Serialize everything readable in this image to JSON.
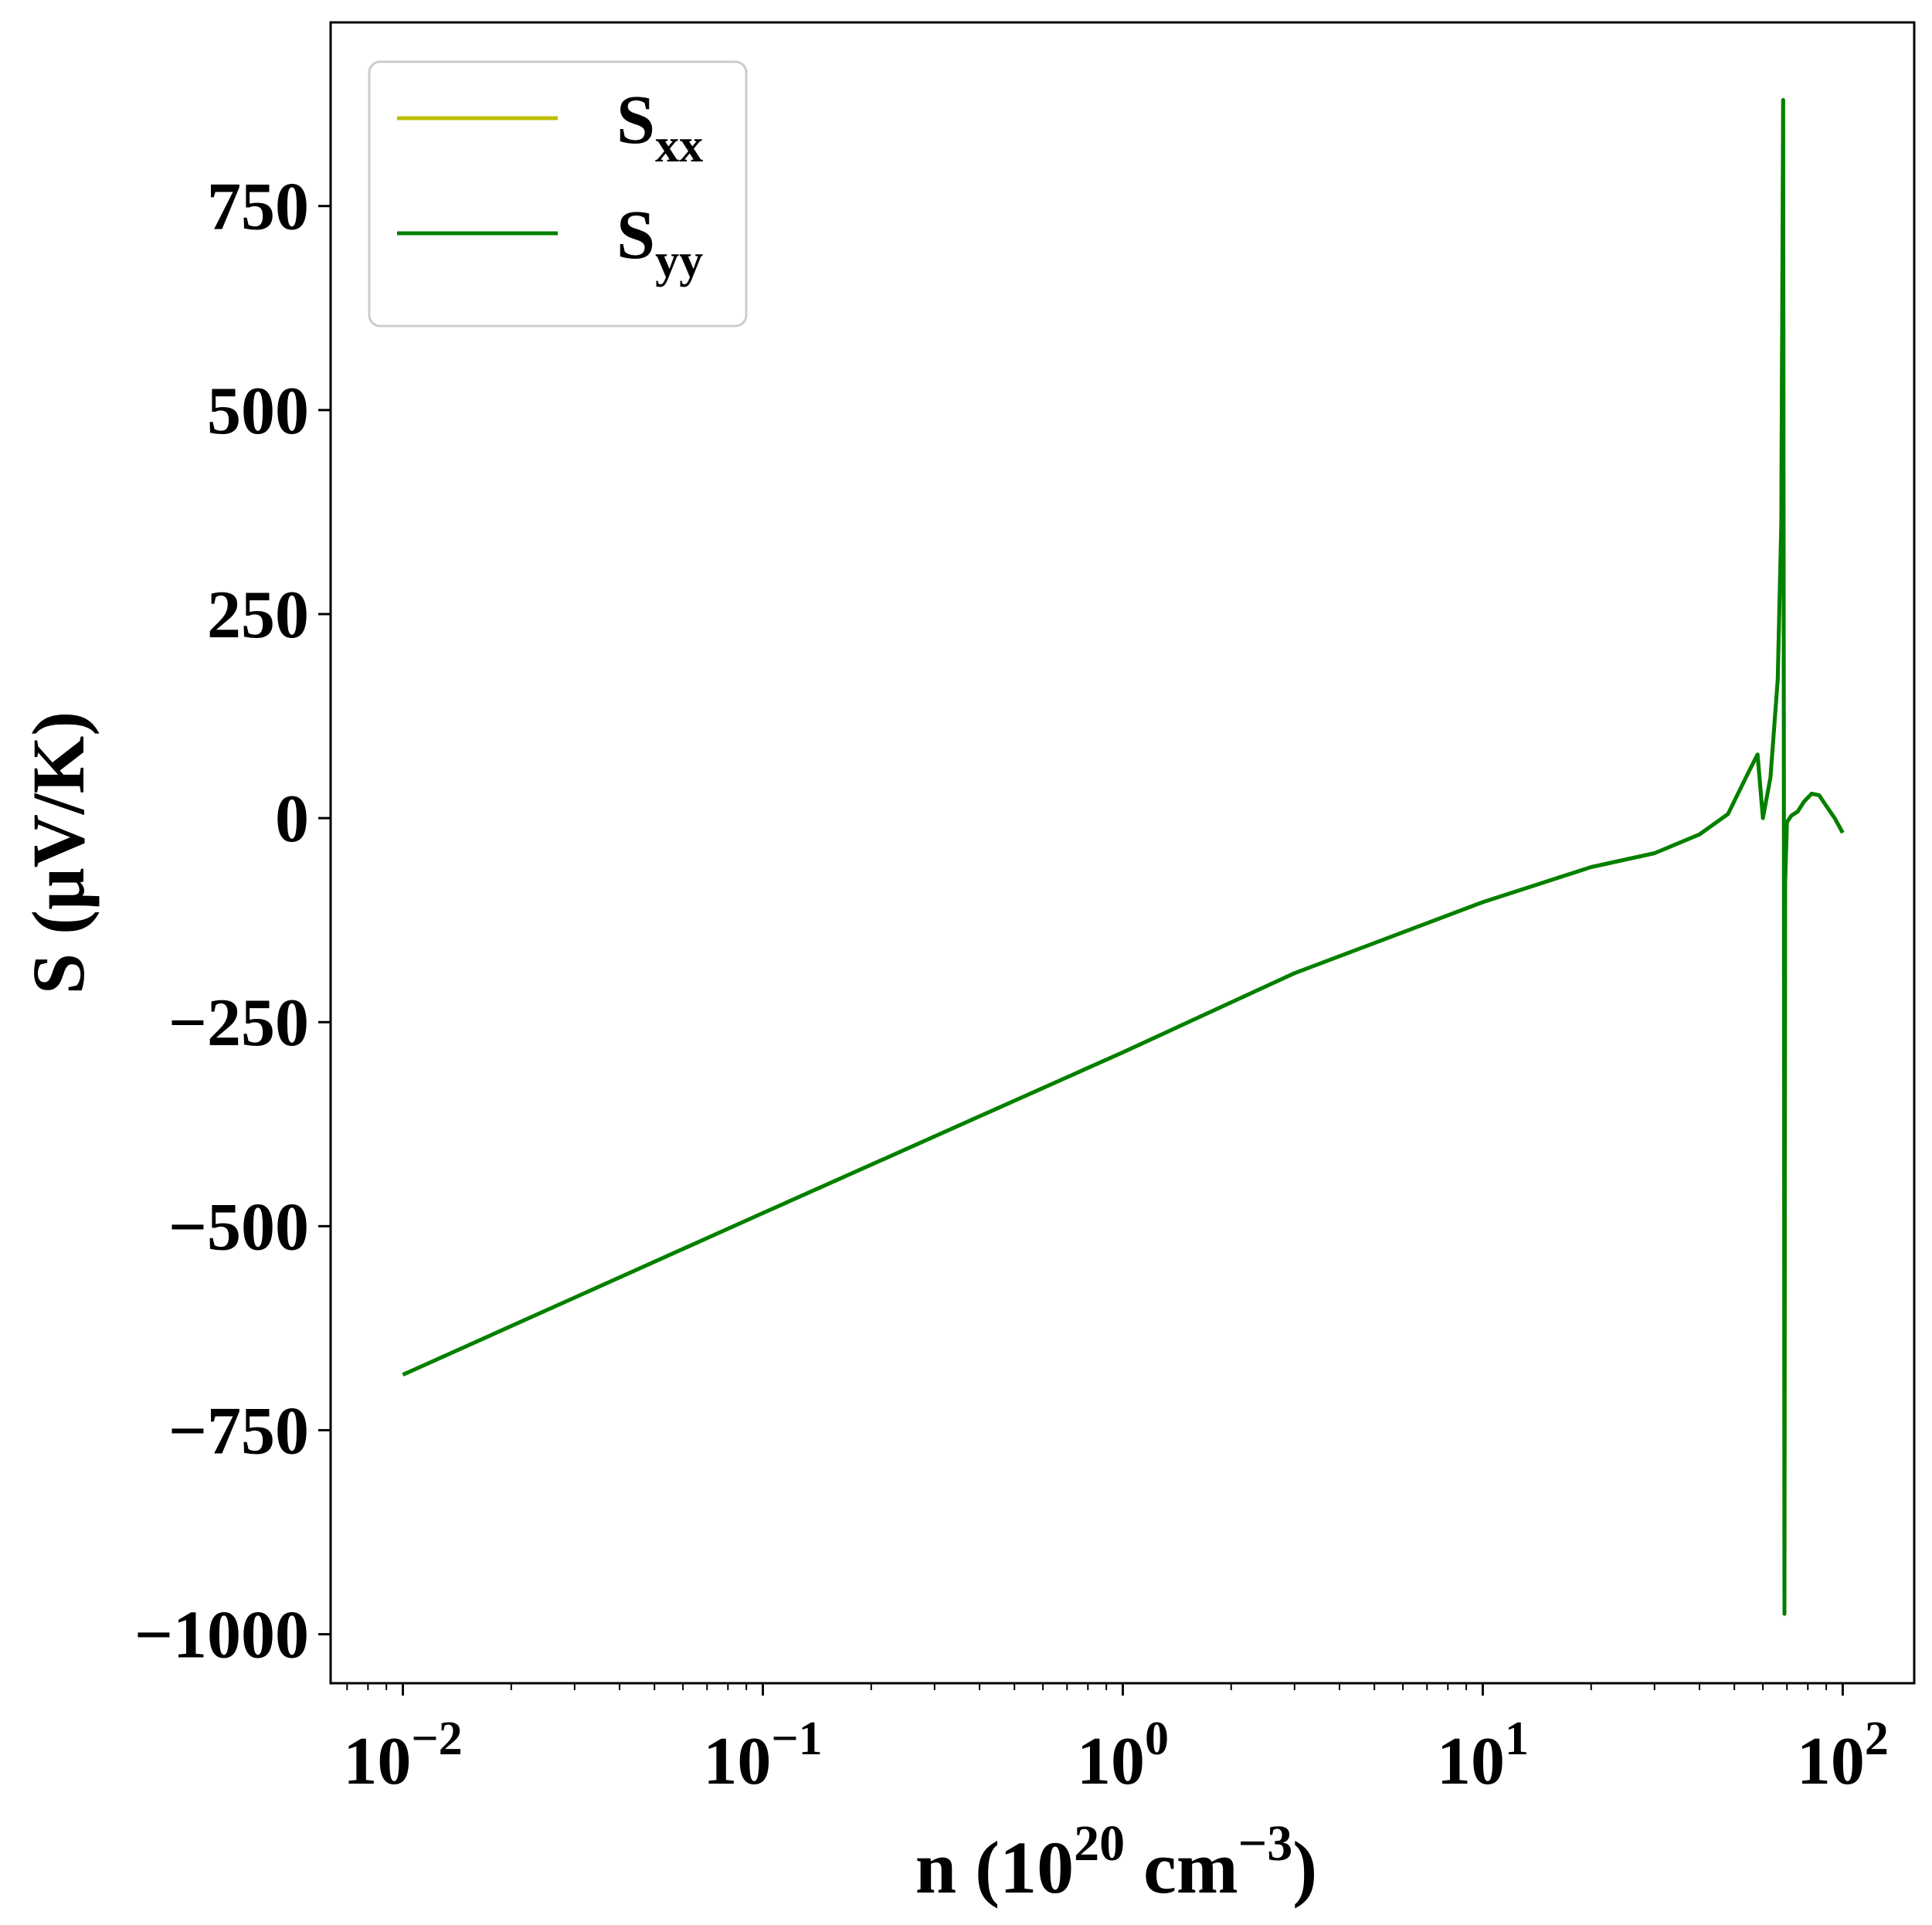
{
  "chart_data": {
    "type": "line",
    "title": "",
    "xlabel": {
      "base": "n (10",
      "sup1": "20",
      "mid": " cm",
      "sup2": "−3",
      "end": ")"
    },
    "ylabel": "S (μV/K)",
    "xscale": "log",
    "xlim": [
      0.0063,
      158
    ],
    "ylim": [
      -1060,
      975
    ],
    "x_ticks": [
      {
        "value": 0.01,
        "base": "10",
        "exp": "−2"
      },
      {
        "value": 0.1,
        "base": "10",
        "exp": "−1"
      },
      {
        "value": 1,
        "base": "10",
        "exp": "0"
      },
      {
        "value": 10,
        "base": "10",
        "exp": "1"
      },
      {
        "value": 100,
        "base": "10",
        "exp": "2"
      }
    ],
    "y_ticks": [
      {
        "value": 750,
        "label": "750"
      },
      {
        "value": 500,
        "label": "500"
      },
      {
        "value": 250,
        "label": "250"
      },
      {
        "value": 0,
        "label": "0"
      },
      {
        "value": -250,
        "label": "−250"
      },
      {
        "value": -500,
        "label": "−500"
      },
      {
        "value": -750,
        "label": "−750"
      },
      {
        "value": -1000,
        "label": "−1000"
      }
    ],
    "grid": false,
    "legend_position": "top-left",
    "series": [
      {
        "name": "S",
        "sub": "xx",
        "color": "#bfbf00",
        "x": [
          0.01,
          0.1,
          1,
          3,
          10,
          20,
          30,
          40,
          48,
          55,
          58,
          60,
          63,
          66,
          67.5,
          68.3,
          68.6,
          68.9,
          69.2,
          70,
          72,
          75,
          78,
          82,
          86,
          90,
          95,
          100
        ],
        "y": [
          -682,
          -484,
          -287,
          -190,
          -103,
          -60,
          -43,
          -20,
          5,
          58,
          78,
          0,
          50,
          170,
          360,
          880,
          100,
          -975,
          -80,
          -5,
          3,
          8,
          20,
          30,
          28,
          15,
          0,
          -18
        ]
      },
      {
        "name": "S",
        "sub": "yy",
        "color": "#008000",
        "x": [
          0.01,
          0.1,
          1,
          3,
          10,
          20,
          30,
          40,
          48,
          55,
          58,
          60,
          63,
          66,
          67.5,
          68.3,
          68.6,
          68.9,
          69.2,
          70,
          72,
          75,
          78,
          82,
          86,
          90,
          95,
          100
        ],
        "y": [
          -682,
          -484,
          -287,
          -190,
          -103,
          -60,
          -43,
          -20,
          5,
          58,
          78,
          0,
          50,
          170,
          360,
          880,
          100,
          -975,
          -80,
          -5,
          3,
          8,
          20,
          30,
          28,
          15,
          0,
          -18
        ]
      }
    ]
  }
}
